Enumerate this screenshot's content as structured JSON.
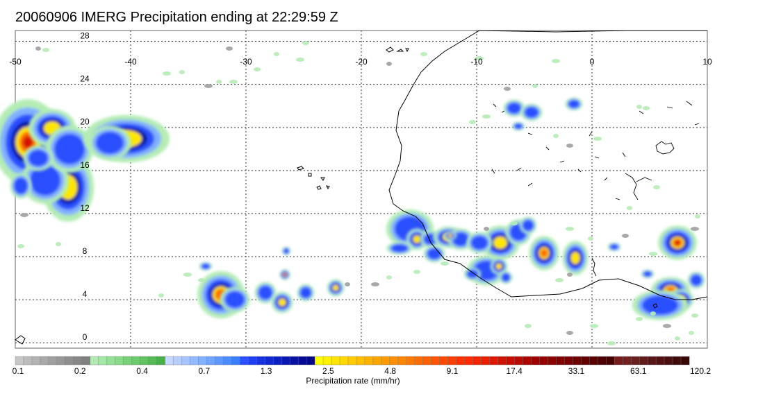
{
  "title": "20060906 IMERG Precipitation ending at 22:29:59 Z",
  "map": {
    "lon_labels": [
      "-50",
      "-40",
      "-30",
      "-20",
      "-10",
      "0",
      "10"
    ],
    "lat_labels": [
      "28",
      "24",
      "20",
      "16",
      "12",
      "8",
      "4",
      "0"
    ],
    "lon_range": [
      -50,
      10
    ],
    "lat_range": [
      -0.5,
      29
    ],
    "gridlines": "dotted"
  },
  "colorbar": {
    "title": "Precipitation rate (mm/hr)",
    "tick_labels": [
      "0.1",
      "0.2",
      "0.4",
      "0.7",
      "1.3",
      "2.5",
      "4.8",
      "9.1",
      "17.4",
      "33.1",
      "63.1",
      "120.2"
    ],
    "colors": [
      "#c8c8c8",
      "#bdbdbd",
      "#b3b3b3",
      "#a9a9a9",
      "#a0a0a0",
      "#979797",
      "#8f8f8f",
      "#878787",
      "#808080",
      "#b4ecb4",
      "#a6e6a6",
      "#97e097",
      "#88d988",
      "#79d279",
      "#6cca6c",
      "#60c260",
      "#55b955",
      "#4ab04a",
      "#c8d7ff",
      "#b8ceff",
      "#a6c4ff",
      "#94baff",
      "#82b0ff",
      "#70a4ff",
      "#5e98ff",
      "#4c8cff",
      "#3b7fff",
      "#2a50ff",
      "#1f40f0",
      "#1733e0",
      "#1028d0",
      "#0a20c0",
      "#0818b0",
      "#0612a0",
      "#040c94",
      "#020888",
      "#ffff00",
      "#fff200",
      "#ffe600",
      "#ffd900",
      "#ffcc00",
      "#ffbf00",
      "#ffb200",
      "#ffa500",
      "#ff9900",
      "#ff9000",
      "#ff8400",
      "#ff7800",
      "#ff6c00",
      "#ff6000",
      "#ff5400",
      "#ff4800",
      "#ff3c00",
      "#ff3000",
      "#ff2a00",
      "#f52400",
      "#eb1e00",
      "#e01800",
      "#d41200",
      "#c80c00",
      "#bb0800",
      "#ae0400",
      "#a00000",
      "#960000",
      "#8c0000",
      "#820000",
      "#780000",
      "#6e0000",
      "#640000",
      "#5a0000",
      "#500000",
      "#460000",
      "#7a1a1a",
      "#722020",
      "#6a1e1e",
      "#621a1a",
      "#5a1616",
      "#521212",
      "#4a0e0e",
      "#420a0a",
      "#3a0606"
    ]
  }
}
